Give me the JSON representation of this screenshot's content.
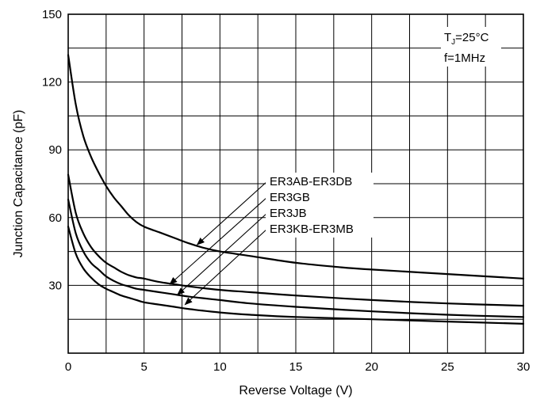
{
  "chart_data": {
    "type": "line",
    "xlabel": "Reverse Voltage (V)",
    "ylabel": "Junction Capacitance (pF)",
    "xlim": [
      0,
      30
    ],
    "ylim": [
      0,
      150
    ],
    "x_ticks": [
      0,
      5,
      10,
      15,
      20,
      25,
      30
    ],
    "y_ticks": [
      30,
      60,
      90,
      120,
      150
    ],
    "grid": true,
    "x_minor_step": 2.5,
    "y_minor_step": 15,
    "conditions": {
      "tj_prefix": "T",
      "tj_sub": "J",
      "tj_suffix": "=25°C",
      "freq": "f=1MHz"
    },
    "series": [
      {
        "name": "ER3AB-ER3DB",
        "x": [
          0,
          0.5,
          1,
          1.5,
          2,
          2.5,
          3,
          3.5,
          4,
          4.5,
          5,
          6,
          7,
          8,
          9,
          10,
          12,
          15,
          18,
          20,
          25,
          30
        ],
        "y": [
          132,
          110,
          96,
          87,
          80,
          74,
          69,
          65,
          61,
          58,
          56,
          53.5,
          51,
          48.5,
          46.5,
          45,
          43,
          40,
          38,
          37,
          35,
          33
        ]
      },
      {
        "name": "ER3GB",
        "x": [
          0,
          0.5,
          1,
          1.5,
          2,
          2.5,
          3,
          3.5,
          4,
          4.5,
          5,
          6,
          7,
          8,
          10,
          12,
          15,
          20,
          25,
          30
        ],
        "y": [
          79,
          62,
          53,
          47,
          43,
          40,
          38,
          36,
          34.5,
          33.5,
          33,
          31.5,
          30.5,
          29.5,
          28,
          27,
          25.5,
          23.5,
          22,
          21
        ]
      },
      {
        "name": "ER3JB",
        "x": [
          0,
          0.5,
          1,
          1.5,
          2,
          2.5,
          3,
          3.5,
          4,
          4.5,
          5,
          6,
          7,
          8,
          10,
          12,
          15,
          20,
          25,
          30
        ],
        "y": [
          68,
          53,
          45,
          40,
          37,
          34,
          32,
          30.5,
          29.5,
          28.5,
          28,
          27,
          26,
          25,
          23.5,
          22,
          20.5,
          18.5,
          17,
          16
        ]
      },
      {
        "name": "ER3KB-ER3MB",
        "x": [
          0,
          0.5,
          1,
          1.5,
          2,
          2.5,
          3,
          3.5,
          4,
          4.5,
          5,
          6,
          7,
          8,
          10,
          12,
          15,
          20,
          25,
          30
        ],
        "y": [
          56,
          44,
          37.5,
          33.5,
          30.5,
          28.5,
          27,
          25.5,
          24.5,
          23.5,
          22.5,
          21.5,
          20.5,
          19.5,
          18,
          17,
          16,
          15,
          14,
          13
        ]
      }
    ],
    "legend": [
      "ER3AB-ER3DB",
      "ER3GB",
      "ER3JB",
      "ER3KB-ER3MB"
    ],
    "callout_targets": [
      {
        "label": "ER3AB-ER3DB",
        "x": 8.5,
        "y": 48
      },
      {
        "label": "ER3GB",
        "x": 6.7,
        "y": 30.5
      },
      {
        "label": "ER3JB",
        "x": 7.2,
        "y": 25.8
      },
      {
        "label": "ER3KB-ER3MB",
        "x": 7.7,
        "y": 21.5
      }
    ]
  }
}
